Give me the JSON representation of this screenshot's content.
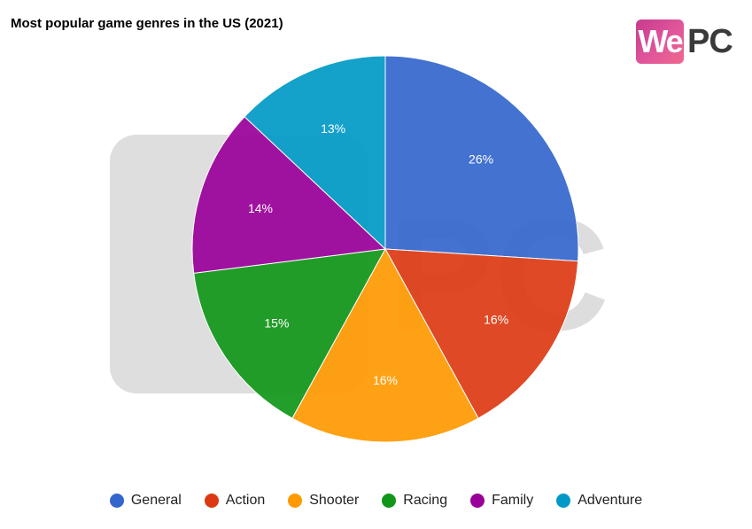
{
  "title": "Most popular game genres in the US (2021)",
  "logo": {
    "badge": "We",
    "text": "PC"
  },
  "chart_data": {
    "type": "pie",
    "title": "Most popular game genres in the US (2021)",
    "categories": [
      "General",
      "Action",
      "Shooter",
      "Racing",
      "Family",
      "Adventure"
    ],
    "values": [
      26,
      16,
      16,
      15,
      14,
      13
    ],
    "labels": [
      "26%",
      "16%",
      "16%",
      "15%",
      "14%",
      "13%"
    ],
    "colors": [
      "#3366cc",
      "#dc3912",
      "#ff9900",
      "#109618",
      "#990099",
      "#0099c6"
    ],
    "unit": "%",
    "legend": "bottom"
  }
}
